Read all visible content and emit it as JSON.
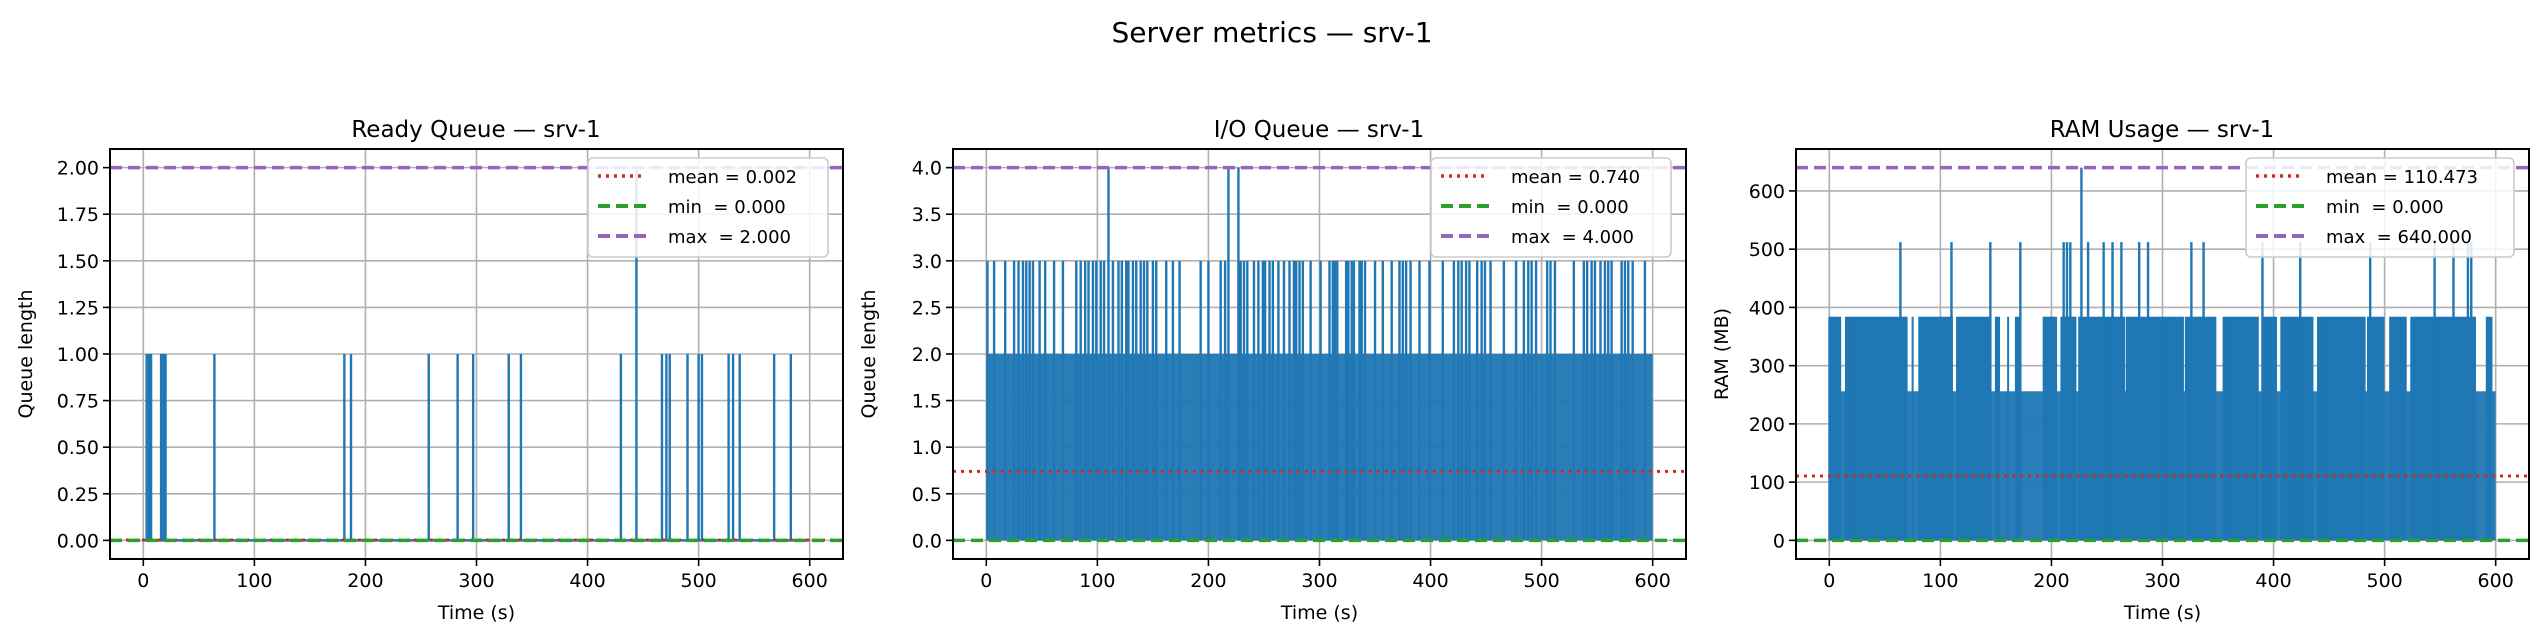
{
  "figure": {
    "title": "Server metrics — srv-1"
  },
  "colors": {
    "series": "#1f77b4",
    "mean": "#d62728",
    "min": "#2ca02c",
    "max": "#9467bd",
    "grid": "#b0b0b0"
  },
  "chart_data": [
    {
      "type": "line",
      "title": "Ready Queue — srv-1",
      "xlabel": "Time (s)",
      "ylabel": "Queue length",
      "xlim": [
        -30,
        630
      ],
      "ylim": [
        -0.1,
        2.1
      ],
      "xticks": [
        0,
        100,
        200,
        300,
        400,
        500,
        600
      ],
      "yticks": [
        "0.00",
        "0.25",
        "0.50",
        "0.75",
        "1.00",
        "1.25",
        "1.50",
        "1.75",
        "2.00"
      ],
      "grid": true,
      "legend_position": "top-right",
      "baseline": 0,
      "spikes": [
        [
          3,
          1
        ],
        [
          5,
          1
        ],
        [
          7,
          1
        ],
        [
          16,
          1
        ],
        [
          18,
          1
        ],
        [
          20,
          1
        ],
        [
          64,
          1
        ],
        [
          181,
          1
        ],
        [
          187,
          1
        ],
        [
          257,
          1
        ],
        [
          283,
          1
        ],
        [
          297,
          1
        ],
        [
          329,
          1
        ],
        [
          340,
          1
        ],
        [
          430,
          1
        ],
        [
          444,
          2
        ],
        [
          467,
          1
        ],
        [
          471,
          1
        ],
        [
          474,
          1
        ],
        [
          490,
          1
        ],
        [
          500,
          1
        ],
        [
          503,
          1
        ],
        [
          527,
          1
        ],
        [
          531,
          1
        ],
        [
          537,
          1
        ],
        [
          568,
          1
        ],
        [
          583,
          1
        ]
      ],
      "legend": [
        {
          "label": "mean = 0.002",
          "value": 0.002,
          "style": "dotted",
          "color_key": "mean"
        },
        {
          "label": "min  = 0.000",
          "value": 0.0,
          "style": "dashed",
          "color_key": "min"
        },
        {
          "label": "max  = 2.000",
          "value": 2.0,
          "style": "dashed",
          "color_key": "max"
        }
      ]
    },
    {
      "type": "line",
      "title": "I/O Queue — srv-1",
      "xlabel": "Time (s)",
      "ylabel": "Queue length",
      "xlim": [
        -30,
        630
      ],
      "ylim": [
        -0.2,
        4.2
      ],
      "xticks": [
        0,
        100,
        200,
        300,
        400,
        500,
        600
      ],
      "yticks": [
        "0.0",
        "0.5",
        "1.0",
        "1.5",
        "2.0",
        "2.5",
        "3.0",
        "3.5",
        "4.0"
      ],
      "grid": true,
      "legend_position": "top-right",
      "dense_band": {
        "from": 0,
        "to": 2,
        "x_range": [
          0,
          600
        ]
      },
      "spikes_level_3": [
        1,
        7,
        17,
        25,
        29,
        33,
        36,
        39,
        42,
        48,
        53,
        61,
        69,
        81,
        85,
        89,
        92,
        96,
        99,
        103,
        106,
        114,
        119,
        122,
        126,
        128,
        132,
        135,
        139,
        142,
        145,
        150,
        153,
        162,
        168,
        174,
        193,
        200,
        211,
        215,
        229,
        232,
        235,
        241,
        245,
        249,
        251,
        255,
        258,
        263,
        268,
        273,
        277,
        279,
        282,
        285,
        292,
        301,
        309,
        312,
        314,
        316,
        324,
        326,
        329,
        331,
        336,
        338,
        341,
        350,
        357,
        365,
        372,
        375,
        378,
        382,
        390,
        399,
        411,
        421,
        425,
        428,
        432,
        435,
        442,
        446,
        449,
        454,
        466,
        477,
        484,
        488,
        491,
        495,
        505,
        508,
        512,
        529,
        538,
        541,
        545,
        548,
        553,
        557,
        560,
        563,
        572,
        575,
        578,
        582,
        593
      ],
      "spikes_level_4": [
        110,
        218,
        227
      ],
      "legend": [
        {
          "label": "mean = 0.740",
          "value": 0.74,
          "style": "dotted",
          "color_key": "mean"
        },
        {
          "label": "min  = 0.000",
          "value": 0.0,
          "style": "dashed",
          "color_key": "min"
        },
        {
          "label": "max  = 4.000",
          "value": 4.0,
          "style": "dashed",
          "color_key": "max"
        }
      ]
    },
    {
      "type": "line",
      "title": "RAM Usage — srv-1",
      "xlabel": "Time (s)",
      "ylabel": "RAM (MB)",
      "xlim": [
        -30,
        630
      ],
      "ylim": [
        -32,
        672
      ],
      "xticks": [
        0,
        100,
        200,
        300,
        400,
        500,
        600
      ],
      "yticks": [
        "0",
        "100",
        "200",
        "300",
        "400",
        "500",
        "600"
      ],
      "grid": true,
      "legend_position": "top-right",
      "dense_band": {
        "from": 0,
        "to": 256,
        "x_range": [
          0,
          600
        ]
      },
      "level_384_ranges": [
        [
          0,
          10
        ],
        [
          15,
          70
        ],
        [
          75,
          75
        ],
        [
          81,
          111
        ],
        [
          115,
          145
        ],
        [
          150,
          154
        ],
        [
          161,
          161
        ],
        [
          168,
          172
        ],
        [
          193,
          205
        ],
        [
          209,
          222
        ],
        [
          225,
          266
        ],
        [
          268,
          319
        ],
        [
          321,
          348
        ],
        [
          355,
          386
        ],
        [
          391,
          403
        ],
        [
          407,
          435
        ],
        [
          440,
          483
        ],
        [
          485,
          500
        ],
        [
          505,
          519
        ],
        [
          524,
          582
        ],
        [
          592,
          597
        ]
      ],
      "spikes_level_512": [
        64,
        110,
        145,
        172,
        211,
        214,
        217,
        233,
        247,
        255,
        263,
        279,
        287,
        326,
        337,
        390,
        424,
        487,
        545,
        562,
        575,
        578
      ],
      "spikes_level_640": [
        227
      ],
      "legend": [
        {
          "label": "mean = 110.473",
          "value": 110.473,
          "style": "dotted",
          "color_key": "mean"
        },
        {
          "label": "min  = 0.000",
          "value": 0.0,
          "style": "dashed",
          "color_key": "min"
        },
        {
          "label": "max  = 640.000",
          "value": 640.0,
          "style": "dashed",
          "color_key": "max"
        }
      ]
    }
  ]
}
